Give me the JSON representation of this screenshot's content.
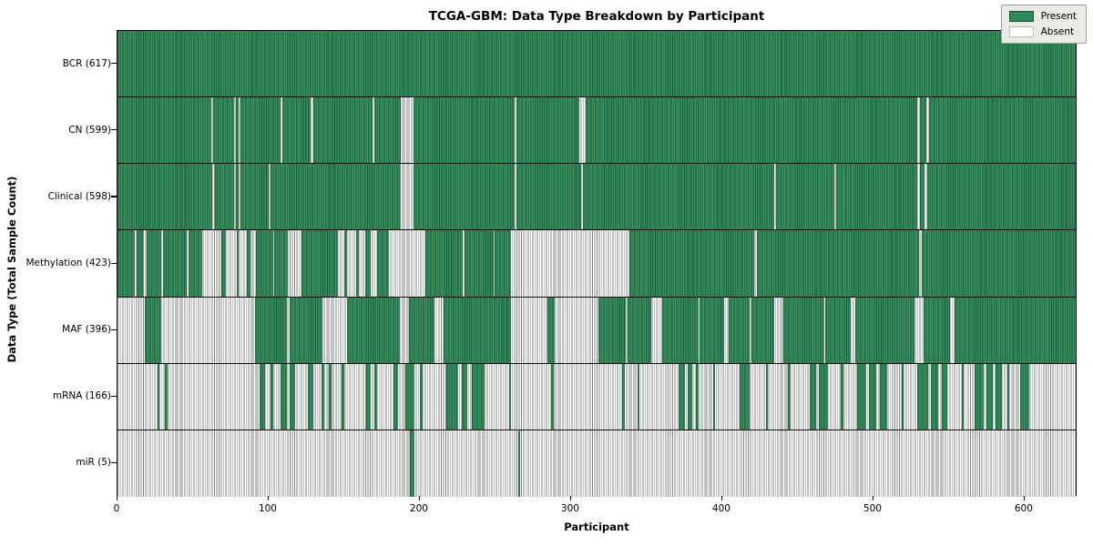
{
  "title": "TCGA-GBM: Data Type Breakdown by Participant",
  "chart_data": {
    "type": "heatmap",
    "title": "TCGA-GBM: Data Type Breakdown by Participant",
    "xlabel": "Participant",
    "ylabel": "Data Type (Total Sample Count)",
    "x_ticks": [
      0,
      100,
      200,
      300,
      400,
      500,
      600
    ],
    "x_max": 635,
    "grid": false,
    "legend_position": "upper right",
    "legend": {
      "present_label": "Present",
      "absent_label": "Absent"
    },
    "colors": {
      "present": "#2e8b57",
      "present_edge": "#1b5233",
      "absent": "#ffffff",
      "absent_edge": "#858585",
      "separator": "#000000",
      "legend_bg": "#e9ece5"
    },
    "rows": [
      {
        "label": "BCR (617)",
        "data_type": "BCR",
        "total_samples": 617,
        "present_segments": [
          [
            0,
            635
          ]
        ]
      },
      {
        "label": "CN (599)",
        "data_type": "CN",
        "total_samples": 599,
        "present_segments": [
          [
            0,
            62
          ],
          [
            63.5,
            77
          ],
          [
            78.5,
            80
          ],
          [
            81.5,
            108
          ],
          [
            109.5,
            128
          ],
          [
            129.5,
            169
          ],
          [
            170.5,
            188
          ],
          [
            196,
            263
          ],
          [
            264.5,
            306
          ],
          [
            310,
            530
          ],
          [
            531.5,
            536
          ],
          [
            538,
            635
          ]
        ]
      },
      {
        "label": "Clinical (598)",
        "data_type": "Clinical",
        "total_samples": 598,
        "present_segments": [
          [
            0,
            63
          ],
          [
            64.5,
            77
          ],
          [
            78.5,
            80
          ],
          [
            81.5,
            100
          ],
          [
            101.5,
            188
          ],
          [
            196,
            263
          ],
          [
            264.5,
            307
          ],
          [
            308.5,
            435
          ],
          [
            436.5,
            475
          ],
          [
            476.5,
            530
          ],
          [
            531.5,
            535
          ],
          [
            536.5,
            635
          ]
        ]
      },
      {
        "label": "Methylation (423)",
        "data_type": "Methylation",
        "total_samples": 423,
        "present_segments": [
          [
            0,
            11.5
          ],
          [
            12.5,
            17
          ],
          [
            19.5,
            29
          ],
          [
            30,
            46
          ],
          [
            47,
            56
          ],
          [
            69,
            72
          ],
          [
            79,
            80.5
          ],
          [
            86,
            88
          ],
          [
            92,
            103
          ],
          [
            104,
            113
          ],
          [
            122,
            146
          ],
          [
            150,
            152
          ],
          [
            158,
            160
          ],
          [
            164,
            168
          ],
          [
            172,
            180
          ],
          [
            204,
            229
          ],
          [
            230,
            249
          ],
          [
            250,
            261
          ],
          [
            339,
            422
          ],
          [
            424,
            531
          ],
          [
            533,
            635
          ]
        ]
      },
      {
        "label": "MAF (396)",
        "data_type": "MAF",
        "total_samples": 396,
        "present_segments": [
          [
            18,
            29
          ],
          [
            91,
            112
          ],
          [
            114,
            136
          ],
          [
            152,
            187
          ],
          [
            193,
            210
          ],
          [
            216,
            261
          ],
          [
            285,
            290
          ],
          [
            319,
            337
          ],
          [
            338,
            354
          ],
          [
            361,
            385
          ],
          [
            386,
            402
          ],
          [
            405,
            419
          ],
          [
            420,
            435
          ],
          [
            441,
            468
          ],
          [
            469,
            486
          ],
          [
            489,
            528
          ],
          [
            534,
            552
          ],
          [
            555,
            635
          ]
        ]
      },
      {
        "label": "mRNA (166)",
        "data_type": "mRNA",
        "total_samples": 166,
        "present_segments": [
          [
            26.5,
            28
          ],
          [
            31.5,
            33
          ],
          [
            94,
            98
          ],
          [
            101.5,
            103
          ],
          [
            108,
            112
          ],
          [
            114,
            118
          ],
          [
            126,
            130
          ],
          [
            135.5,
            137
          ],
          [
            140,
            142
          ],
          [
            148.5,
            150
          ],
          [
            165,
            168
          ],
          [
            170.5,
            172
          ],
          [
            183,
            186
          ],
          [
            191,
            197
          ],
          [
            200.5,
            202
          ],
          [
            218,
            226
          ],
          [
            228,
            232
          ],
          [
            235,
            243
          ],
          [
            259.5,
            261
          ],
          [
            287.5,
            289
          ],
          [
            334.5,
            336
          ],
          [
            344.5,
            346
          ],
          [
            372,
            376
          ],
          [
            378,
            381
          ],
          [
            383,
            385
          ],
          [
            394.5,
            396
          ],
          [
            412,
            419
          ],
          [
            429.5,
            431
          ],
          [
            444.5,
            446
          ],
          [
            459,
            463
          ],
          [
            465,
            471
          ],
          [
            479.5,
            481
          ],
          [
            490,
            496
          ],
          [
            498,
            503
          ],
          [
            505,
            510
          ],
          [
            519.5,
            521
          ],
          [
            530,
            537
          ],
          [
            539,
            544
          ],
          [
            546,
            550
          ],
          [
            559.5,
            561
          ],
          [
            568,
            574
          ],
          [
            576,
            580
          ],
          [
            582,
            586
          ],
          [
            589.5,
            591
          ],
          [
            598,
            604
          ]
        ]
      },
      {
        "label": "miR (5)",
        "data_type": "miR",
        "total_samples": 5,
        "present_segments": [
          [
            193.5,
            197
          ],
          [
            265.5,
            267
          ]
        ]
      }
    ]
  }
}
